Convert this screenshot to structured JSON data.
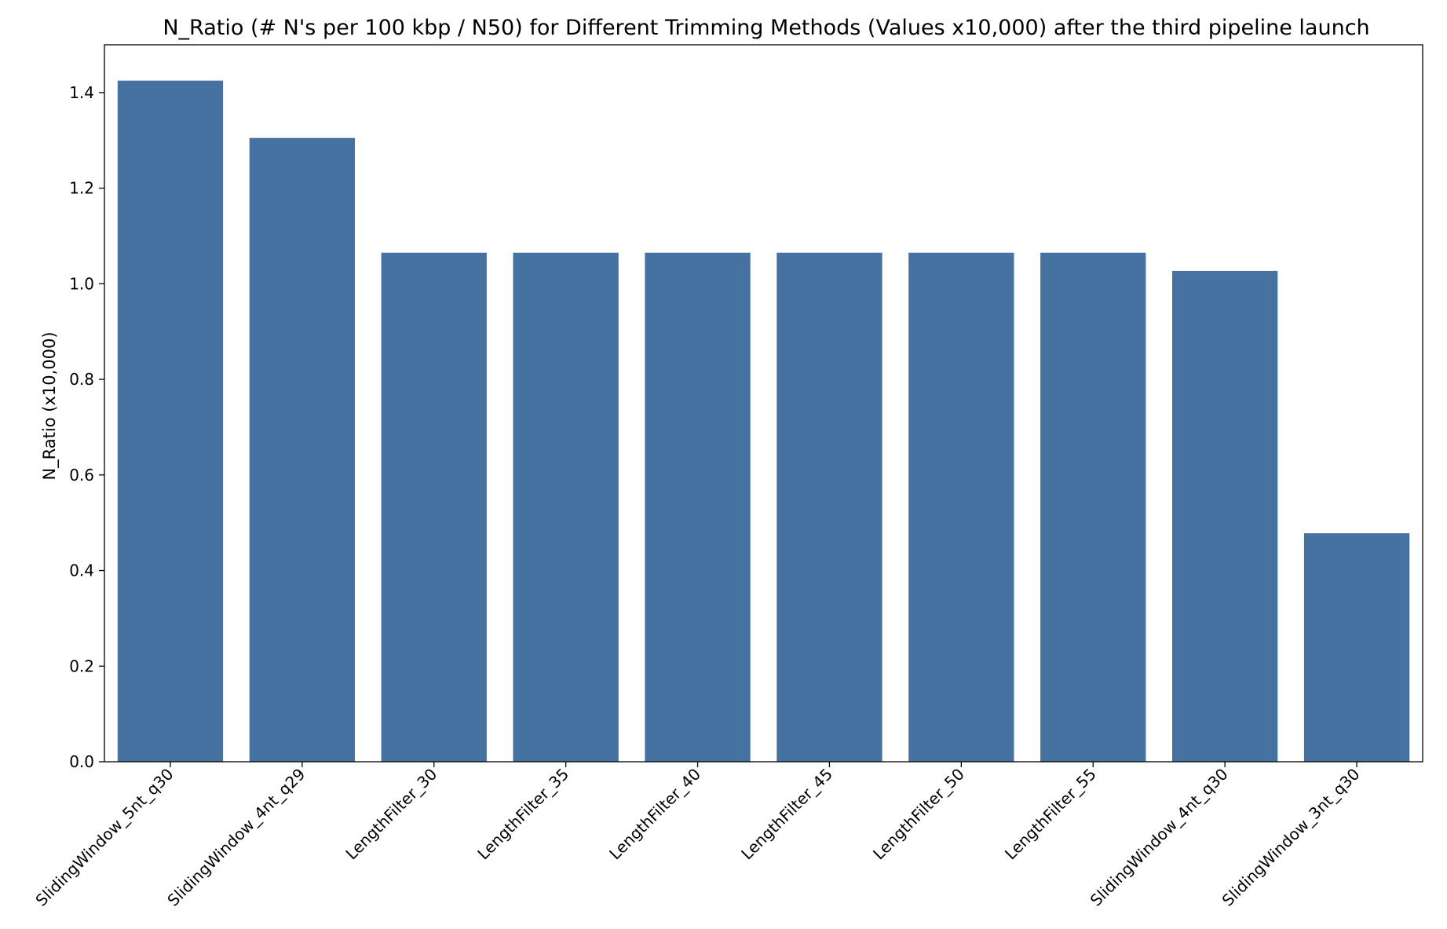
{
  "chart_data": {
    "type": "bar",
    "title": "N_Ratio (# N's per 100 kbp / N50) for Different Trimming Methods (Values x10,000) after the third pipeline launch",
    "xlabel": "",
    "ylabel": "N_Ratio (x10,000)",
    "categories": [
      "SlidingWindow_5nt_q30",
      "SlidingWindow_4nt_q29",
      "LengthFilter_30",
      "LengthFilter_35",
      "LengthFilter_40",
      "LengthFilter_45",
      "LengthFilter_50",
      "LengthFilter_55",
      "SlidingWindow_4nt_q30",
      "SlidingWindow_3nt_q30"
    ],
    "values": [
      1.425,
      1.305,
      1.065,
      1.065,
      1.065,
      1.065,
      1.065,
      1.065,
      1.027,
      0.478
    ],
    "highlighted_categories": [
      "SlidingWindow_4nt_q30"
    ],
    "ylim": [
      0,
      1.5
    ],
    "yticks": [
      0.0,
      0.2,
      0.4,
      0.6,
      0.8,
      1.0,
      1.2,
      1.4
    ],
    "ytick_labels": [
      "0.0",
      "0.2",
      "0.4",
      "0.6",
      "0.8",
      "1.0",
      "1.2",
      "1.4"
    ],
    "grid": false,
    "legend": "none",
    "colors": {
      "bar": "#4572a0",
      "highlight_label": "#e8352b",
      "text": "#000000",
      "axis": "#000000"
    }
  }
}
